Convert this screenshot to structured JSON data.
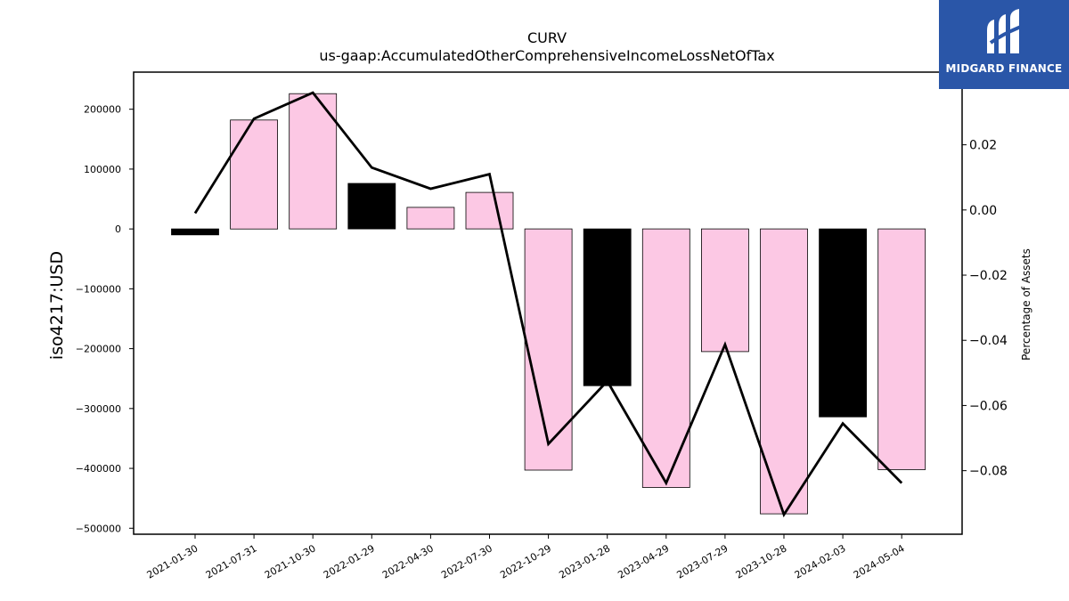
{
  "chart_data": {
    "type": "bar",
    "title": "CURV",
    "subtitle": "us-gaap:AccumulatedOtherComprehensiveIncomeLossNetOfTax",
    "ylabel": "iso4217:USD",
    "y2label": "Percentage of Assets",
    "categories": [
      "2021-01-30",
      "2021-07-31",
      "2021-10-30",
      "2022-01-29",
      "2022-04-30",
      "2022-07-30",
      "2022-10-29",
      "2023-01-28",
      "2023-04-29",
      "2023-07-29",
      "2023-10-28",
      "2024-02-03",
      "2024-05-04"
    ],
    "values": [
      -10000,
      182000,
      226000,
      76000,
      36000,
      61000,
      -403000,
      -262000,
      -432000,
      -205000,
      -476000,
      -314000,
      -402000
    ],
    "bar_colors": [
      "#000000",
      "#fcc8e4",
      "#fcc8e4",
      "#000000",
      "#fcc8e4",
      "#fcc8e4",
      "#fcc8e4",
      "#000000",
      "#fcc8e4",
      "#fcc8e4",
      "#fcc8e4",
      "#000000",
      "#fcc8e4"
    ],
    "line_values": [
      -0.001,
      0.028,
      0.036,
      0.013,
      0.0065,
      0.011,
      -0.0718,
      -0.0525,
      -0.0838,
      -0.0413,
      -0.0935,
      -0.0655,
      -0.0838
    ],
    "ylim": [
      -510000,
      262000
    ],
    "y2lim": [
      -0.0995,
      0.0423
    ],
    "yticks": [
      200000,
      100000,
      0,
      -100000,
      -200000,
      -300000,
      -400000,
      -500000
    ],
    "ytick_labels": [
      "200000",
      "100000",
      "0",
      "−100000",
      "−200000",
      "−300000",
      "−400000",
      "−500000"
    ],
    "y2ticks": [
      0.02,
      0.0,
      -0.02,
      -0.04,
      -0.06,
      -0.08
    ],
    "y2tick_labels": [
      "0.02",
      "0.00",
      "−0.02",
      "−0.04",
      "−0.06",
      "−0.08"
    ],
    "grid": false
  },
  "logo": {
    "text": "MIDGARD FINANCE",
    "color": "#2a56a8"
  }
}
